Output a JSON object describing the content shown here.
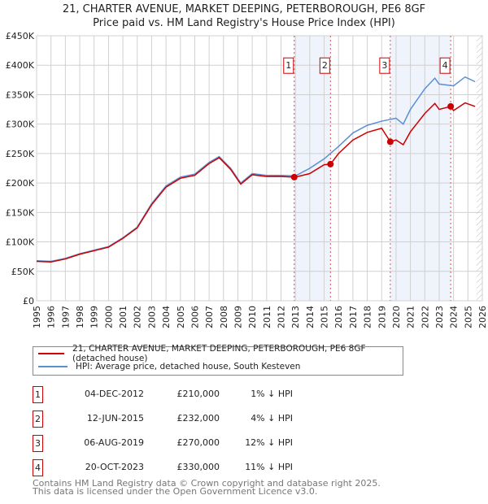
{
  "chart_data": {
    "type": "line",
    "title": "21, CHARTER AVENUE, MARKET DEEPING, PETERBOROUGH, PE6 8GF",
    "subtitle": "Price paid vs. HM Land Registry's House Price Index (HPI)",
    "xlim": [
      1995,
      2026
    ],
    "ylim": [
      0,
      450000
    ],
    "x_ticks": [
      "1995",
      "1996",
      "1997",
      "1998",
      "1999",
      "2000",
      "2001",
      "2002",
      "2003",
      "2004",
      "2005",
      "2006",
      "2007",
      "2008",
      "2009",
      "2010",
      "2011",
      "2012",
      "2013",
      "2014",
      "2015",
      "2016",
      "2017",
      "2018",
      "2019",
      "2020",
      "2021",
      "2022",
      "2023",
      "2024",
      "2025",
      "2026"
    ],
    "y_ticks": [
      {
        "v": 0,
        "label": "£0"
      },
      {
        "v": 50000,
        "label": "£50K"
      },
      {
        "v": 100000,
        "label": "£100K"
      },
      {
        "v": 150000,
        "label": "£150K"
      },
      {
        "v": 200000,
        "label": "£200K"
      },
      {
        "v": 250000,
        "label": "£250K"
      },
      {
        "v": 300000,
        "label": "£300K"
      },
      {
        "v": 350000,
        "label": "£350K"
      },
      {
        "v": 400000,
        "label": "£400K"
      },
      {
        "v": 450000,
        "label": "£450K"
      }
    ],
    "grid": true,
    "series": [
      {
        "name": "HPI: Average price, detached house, South Kesteven",
        "color": "#5b8fd4",
        "x": [
          1995,
          1996,
          1997,
          1998,
          1999,
          2000,
          2001,
          2002,
          2003,
          2004,
          2005,
          2006,
          2007,
          2007.7,
          2008.5,
          2009.2,
          2010,
          2011,
          2012,
          2013,
          2014,
          2015,
          2016,
          2017,
          2018,
          2019,
          2020,
          2020.5,
          2021,
          2022,
          2022.7,
          2023,
          2024,
          2024.8,
          2025.5
        ],
        "y": [
          68000,
          67000,
          72000,
          80000,
          86000,
          92000,
          107000,
          125000,
          165000,
          195000,
          210000,
          215000,
          235000,
          245000,
          225000,
          200000,
          216000,
          213000,
          213000,
          212000,
          225000,
          241000,
          262000,
          285000,
          298000,
          305000,
          310000,
          300000,
          325000,
          360000,
          378000,
          368000,
          365000,
          380000,
          372000
        ]
      },
      {
        "name": "21, CHARTER AVENUE, MARKET DEEPING, PETERBOROUGH, PE6 8GF (detached house)",
        "color": "#cc0000",
        "x": [
          1995,
          1996,
          1997,
          1998,
          1999,
          2000,
          2001,
          2002,
          2003,
          2004,
          2005,
          2006,
          2007,
          2007.7,
          2008.5,
          2009.2,
          2010,
          2011,
          2012,
          2012.92,
          2013,
          2014,
          2015,
          2015.44,
          2016,
          2017,
          2018,
          2019,
          2019.6,
          2020,
          2020.5,
          2021,
          2022,
          2022.7,
          2023,
          2023.8,
          2024,
          2024.8,
          2025.5
        ],
        "y": [
          67000,
          66000,
          71000,
          79000,
          85000,
          91000,
          106000,
          124000,
          163000,
          193000,
          208000,
          213000,
          233000,
          243000,
          223000,
          198000,
          214000,
          211000,
          211000,
          210000,
          210000,
          216000,
          231000,
          232000,
          250000,
          273000,
          286000,
          293000,
          270000,
          273000,
          265000,
          287000,
          318000,
          335000,
          325000,
          330000,
          323000,
          336000,
          330000
        ]
      }
    ],
    "sales": [
      {
        "n": "1",
        "x": 2012.92,
        "date": "04-DEC-2012",
        "price": "£210,000",
        "value": 210000,
        "hpi": "1% ↓ HPI"
      },
      {
        "n": "2",
        "x": 2015.44,
        "date": "12-JUN-2015",
        "price": "£232,000",
        "value": 232000,
        "hpi": "4% ↓ HPI"
      },
      {
        "n": "3",
        "x": 2019.6,
        "date": "06-AUG-2019",
        "price": "£270,000",
        "value": 270000,
        "hpi": "12% ↓ HPI"
      },
      {
        "n": "4",
        "x": 2023.8,
        "date": "20-OCT-2023",
        "price": "£330,000",
        "value": 330000,
        "hpi": "11% ↓ HPI"
      }
    ],
    "shaded": [
      [
        2012.92,
        2015.44
      ],
      [
        2019.6,
        2023.8
      ]
    ],
    "forecast_from": 2025.6,
    "legend_position": "below"
  },
  "legend": {
    "red": "21, CHARTER AVENUE, MARKET DEEPING, PETERBOROUGH, PE6 8GF (detached house)",
    "blue": "HPI: Average price, detached house, South Kesteven"
  },
  "footer": {
    "line1": "Contains HM Land Registry data © Crown copyright and database right 2025.",
    "line2": "This data is licensed under the Open Government Licence v3.0."
  }
}
